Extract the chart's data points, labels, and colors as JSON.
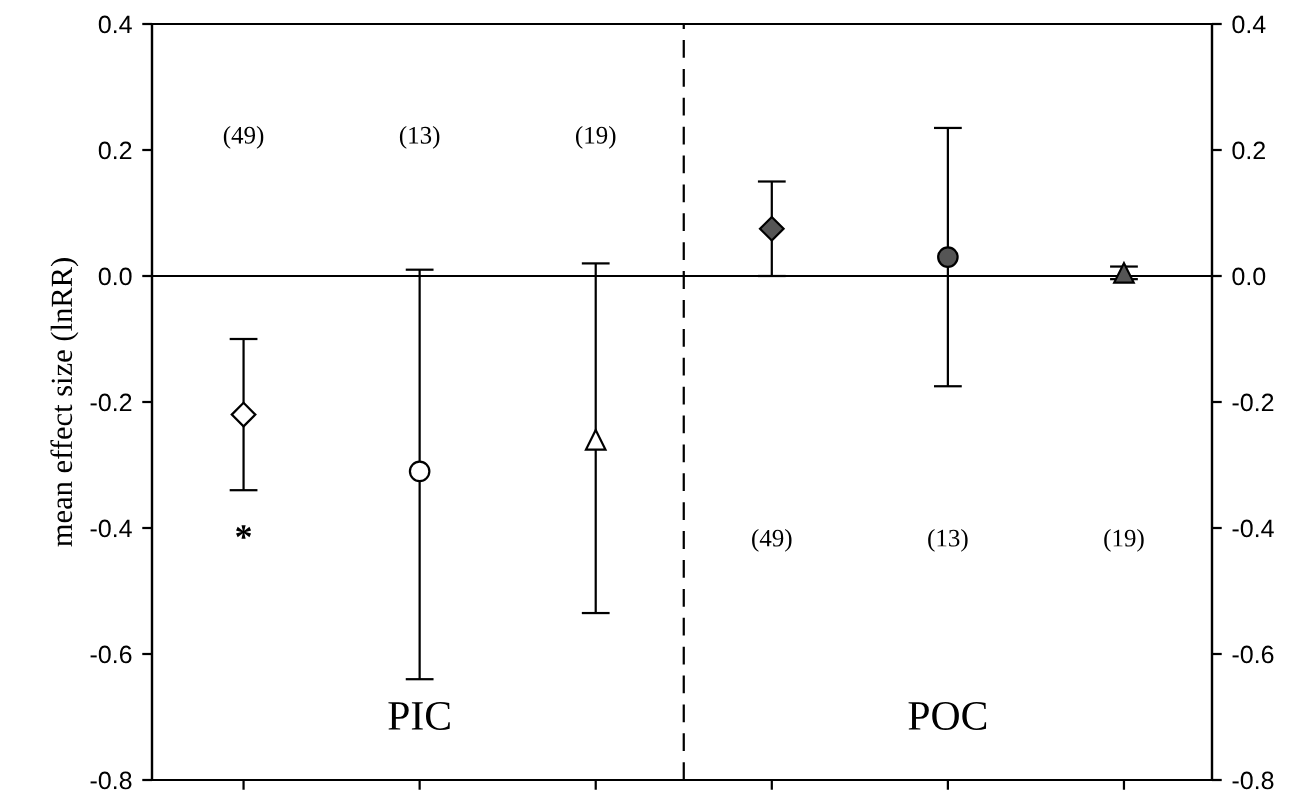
{
  "chart_data": {
    "type": "scatter",
    "ylabel": "mean effect size (lnRR)",
    "categories": [
      null,
      null,
      null,
      null,
      null,
      null
    ],
    "series": [
      {
        "color": "#ffffff",
        "marker": "diamond",
        "values": [
          -0.22,
          null,
          null,
          null,
          null,
          null
        ],
        "errors": [
          [
            -0.34,
            -0.1
          ],
          null,
          null,
          null,
          null,
          null
        ]
      },
      {
        "color": "#ffffff",
        "marker": "circle",
        "values": [
          null,
          -0.31,
          null,
          null,
          null,
          null
        ],
        "errors": [
          null,
          [
            -0.64,
            0.01
          ],
          null,
          null,
          null,
          null
        ]
      },
      {
        "color": "#ffffff",
        "marker": "triangle",
        "values": [
          null,
          null,
          -0.26,
          null,
          null,
          null
        ],
        "errors": [
          null,
          null,
          [
            -0.535,
            0.02
          ],
          null,
          null,
          null
        ]
      },
      {
        "color": "#555555",
        "marker": "diamond",
        "values": [
          null,
          null,
          null,
          0.075,
          null,
          null
        ],
        "errors": [
          null,
          null,
          null,
          [
            0.0,
            0.15
          ],
          null,
          null
        ]
      },
      {
        "color": "#555555",
        "marker": "circle",
        "values": [
          null,
          null,
          null,
          null,
          0.03,
          null
        ],
        "errors": [
          null,
          null,
          null,
          null,
          [
            -0.175,
            0.235
          ],
          null
        ]
      },
      {
        "color": "#555555",
        "marker": "triangle",
        "values": [
          null,
          null,
          null,
          null,
          null,
          0.005
        ],
        "errors": [
          null,
          null,
          null,
          null,
          null,
          [
            -0.005,
            0.015
          ]
        ]
      }
    ],
    "ylim": [
      -0.8,
      0.4
    ],
    "yticks": [
      -0.8,
      -0.6,
      -0.4,
      -0.2,
      {
        "value": 0,
        "label": "0.0"
      },
      0.2,
      0.4
    ],
    "y2lim": [
      -0.8,
      0.4
    ],
    "y2ticks": [
      -0.8,
      -0.6,
      -0.4,
      -0.2,
      {
        "value": 0,
        "label": "0.0"
      },
      0.2,
      0.4
    ],
    "tick_labels": "y",
    "grid": false,
    "legend": false,
    "ref_lines": [
      {
        "axis": "y",
        "value": 0,
        "line_style": "solid"
      }
    ],
    "annotations": [
      "(49)",
      "(13)",
      "(19)",
      "(49)",
      "(13)",
      "(19)",
      "*",
      "PIC",
      "POC"
    ]
  }
}
